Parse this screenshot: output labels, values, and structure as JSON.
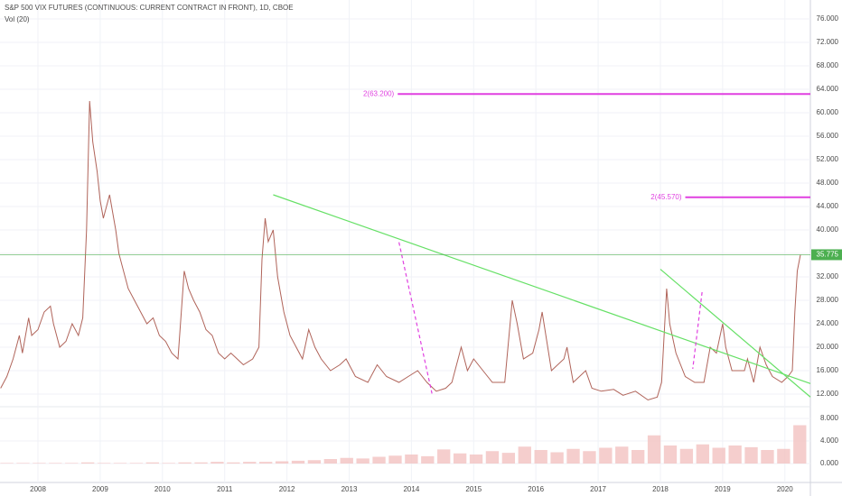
{
  "chart_data": [
    {
      "type": "line",
      "title": "S&P 500 VIX FUTURES (CONTINUOUS: CURRENT CONTRACT IN FRONT), 1D, CBOE",
      "x": [
        2007.4,
        2007.5,
        2007.6,
        2007.7,
        2007.75,
        2007.85,
        2007.9,
        2008.0,
        2008.1,
        2008.2,
        2008.25,
        2008.35,
        2008.45,
        2008.55,
        2008.65,
        2008.72,
        2008.78,
        2008.83,
        2008.88,
        2008.95,
        2009.0,
        2009.05,
        2009.15,
        2009.25,
        2009.3,
        2009.35,
        2009.45,
        2009.55,
        2009.65,
        2009.75,
        2009.85,
        2009.95,
        2010.05,
        2010.15,
        2010.25,
        2010.35,
        2010.42,
        2010.5,
        2010.6,
        2010.7,
        2010.8,
        2010.9,
        2011.0,
        2011.1,
        2011.2,
        2011.3,
        2011.45,
        2011.55,
        2011.6,
        2011.65,
        2011.7,
        2011.78,
        2011.85,
        2011.95,
        2012.05,
        2012.15,
        2012.25,
        2012.35,
        2012.45,
        2012.55,
        2012.7,
        2012.85,
        2012.95,
        2013.1,
        2013.3,
        2013.45,
        2013.6,
        2013.8,
        2013.95,
        2014.1,
        2014.25,
        2014.4,
        2014.55,
        2014.65,
        2014.8,
        2014.9,
        2015.0,
        2015.15,
        2015.3,
        2015.5,
        2015.62,
        2015.7,
        2015.8,
        2015.95,
        2016.05,
        2016.1,
        2016.25,
        2016.45,
        2016.5,
        2016.6,
        2016.8,
        2016.9,
        2017.05,
        2017.25,
        2017.4,
        2017.6,
        2017.8,
        2017.95,
        2018.02,
        2018.1,
        2018.15,
        2018.25,
        2018.4,
        2018.55,
        2018.7,
        2018.8,
        2018.9,
        2019.0,
        2019.05,
        2019.15,
        2019.35,
        2019.4,
        2019.5,
        2019.6,
        2019.7,
        2019.8,
        2019.95,
        2020.05,
        2020.12,
        2020.16,
        2020.2,
        2020.25
      ],
      "values": [
        13,
        15,
        18,
        22,
        19,
        25,
        22,
        23,
        26,
        27,
        24,
        20,
        21,
        24,
        22,
        25,
        40,
        62,
        55,
        50,
        45,
        42,
        46,
        40,
        36,
        34,
        30,
        28,
        26,
        24,
        25,
        22,
        21,
        19,
        18,
        33,
        30,
        28,
        26,
        23,
        22,
        19,
        18,
        19,
        18,
        17,
        18,
        20,
        35,
        42,
        38,
        40,
        32,
        26,
        22,
        20,
        18,
        23,
        20,
        18,
        16,
        17,
        18,
        15,
        14,
        17,
        15,
        14,
        15,
        16,
        14,
        12.5,
        13,
        14,
        20,
        16,
        18,
        16,
        14,
        14,
        28,
        24,
        18,
        19,
        23,
        26,
        16,
        18,
        20,
        14,
        16,
        13,
        12.5,
        12.8,
        11.8,
        12.5,
        11,
        11.5,
        14,
        30,
        24,
        19,
        15,
        14,
        14,
        20,
        19,
        24,
        20,
        16,
        16,
        18,
        14,
        20,
        17,
        15,
        14,
        15,
        16,
        26,
        33,
        35.775
      ],
      "color": "#b0645a",
      "xlim": [
        2007.39,
        2020.41
      ],
      "ylim": [
        10,
        78
      ],
      "xticks": [
        2008,
        2009,
        2010,
        2011,
        2012,
        2013,
        2014,
        2015,
        2016,
        2017,
        2018,
        2019,
        2020
      ],
      "yticks": [
        {
          "value": 12,
          "label": "12.000"
        },
        {
          "value": 16,
          "label": "16.000"
        },
        {
          "value": 20,
          "label": "20.000"
        },
        {
          "value": 24,
          "label": "24.000"
        },
        {
          "value": 28,
          "label": "28.000"
        },
        {
          "value": 32,
          "label": "32.000"
        },
        {
          "value": 36,
          "label": "36.000"
        },
        {
          "value": 40,
          "label": "40.000"
        },
        {
          "value": 44,
          "label": "44.000"
        },
        {
          "value": 48,
          "label": "48.000"
        },
        {
          "value": 52,
          "label": "52.000"
        },
        {
          "value": 56,
          "label": "56.000"
        },
        {
          "value": 60,
          "label": "60.000"
        },
        {
          "value": 64,
          "label": "64.000"
        },
        {
          "value": 68,
          "label": "68.000"
        },
        {
          "value": 72,
          "label": "72.000"
        },
        {
          "value": 76,
          "label": "76.000"
        }
      ],
      "grid": true,
      "last_price": {
        "value": 35.775,
        "label": "35.775",
        "color": "#4caf50"
      },
      "hlines": [
        {
          "value": 63.2,
          "label": "2(63.200)",
          "x_start": 2013.78,
          "color": "#e040e0"
        },
        {
          "value": 45.57,
          "label": "2(45.570)",
          "x_start": 2018.4,
          "color": "#e040e0"
        }
      ],
      "trend_lines": [
        {
          "x": [
            2011.78,
            2020.41
          ],
          "y": [
            46,
            13.8
          ],
          "color": "#66e066",
          "dashed": false
        },
        {
          "x": [
            2018.0,
            2020.41
          ],
          "y": [
            33.3,
            11.5
          ],
          "color": "#66e066",
          "dashed": false
        },
        {
          "x": [
            2013.8,
            2014.33
          ],
          "y": [
            37.9,
            12.1
          ],
          "color": "#e040e0",
          "dashed": true
        },
        {
          "x": [
            2018.67,
            2018.52
          ],
          "y": [
            29.4,
            16.3
          ],
          "color": "#e040e0",
          "dashed": true
        }
      ]
    },
    {
      "type": "bar",
      "title": "Vol (20)",
      "x": [
        2007.5,
        2007.76,
        2008.02,
        2008.28,
        2008.54,
        2008.8,
        2009.06,
        2009.32,
        2009.58,
        2009.84,
        2010.1,
        2010.36,
        2010.62,
        2010.88,
        2011.14,
        2011.4,
        2011.66,
        2011.92,
        2012.18,
        2012.44,
        2012.7,
        2012.96,
        2013.22,
        2013.48,
        2013.74,
        2014.0,
        2014.26,
        2014.52,
        2014.78,
        2015.04,
        2015.3,
        2015.56,
        2015.82,
        2016.08,
        2016.34,
        2016.6,
        2016.86,
        2017.12,
        2017.38,
        2017.64,
        2017.9,
        2018.16,
        2018.42,
        2018.68,
        2018.94,
        2019.2,
        2019.46,
        2019.72,
        2019.98,
        2020.24
      ],
      "values": [
        0.1,
        0.1,
        0.1,
        0.1,
        0.1,
        0.2,
        0.1,
        0.1,
        0.1,
        0.2,
        0.1,
        0.2,
        0.2,
        0.3,
        0.2,
        0.3,
        0.3,
        0.4,
        0.5,
        0.6,
        0.8,
        1.0,
        0.9,
        1.2,
        1.4,
        1.6,
        1.3,
        2.5,
        1.8,
        1.6,
        2.2,
        1.9,
        3.0,
        2.4,
        2.0,
        2.6,
        2.2,
        2.8,
        3.0,
        2.4,
        5.0,
        3.2,
        2.6,
        3.4,
        2.8,
        3.2,
        2.9,
        2.4,
        2.6,
        6.8
      ],
      "color": "#f3c2c0",
      "xlim": [
        2007.39,
        2020.41
      ],
      "ylim": [
        -3.36,
        9.92
      ],
      "yticks": [
        {
          "value": 0,
          "label": "0.000"
        },
        {
          "value": 4,
          "label": "4.000"
        },
        {
          "value": 8,
          "label": "8.000"
        }
      ]
    }
  ]
}
